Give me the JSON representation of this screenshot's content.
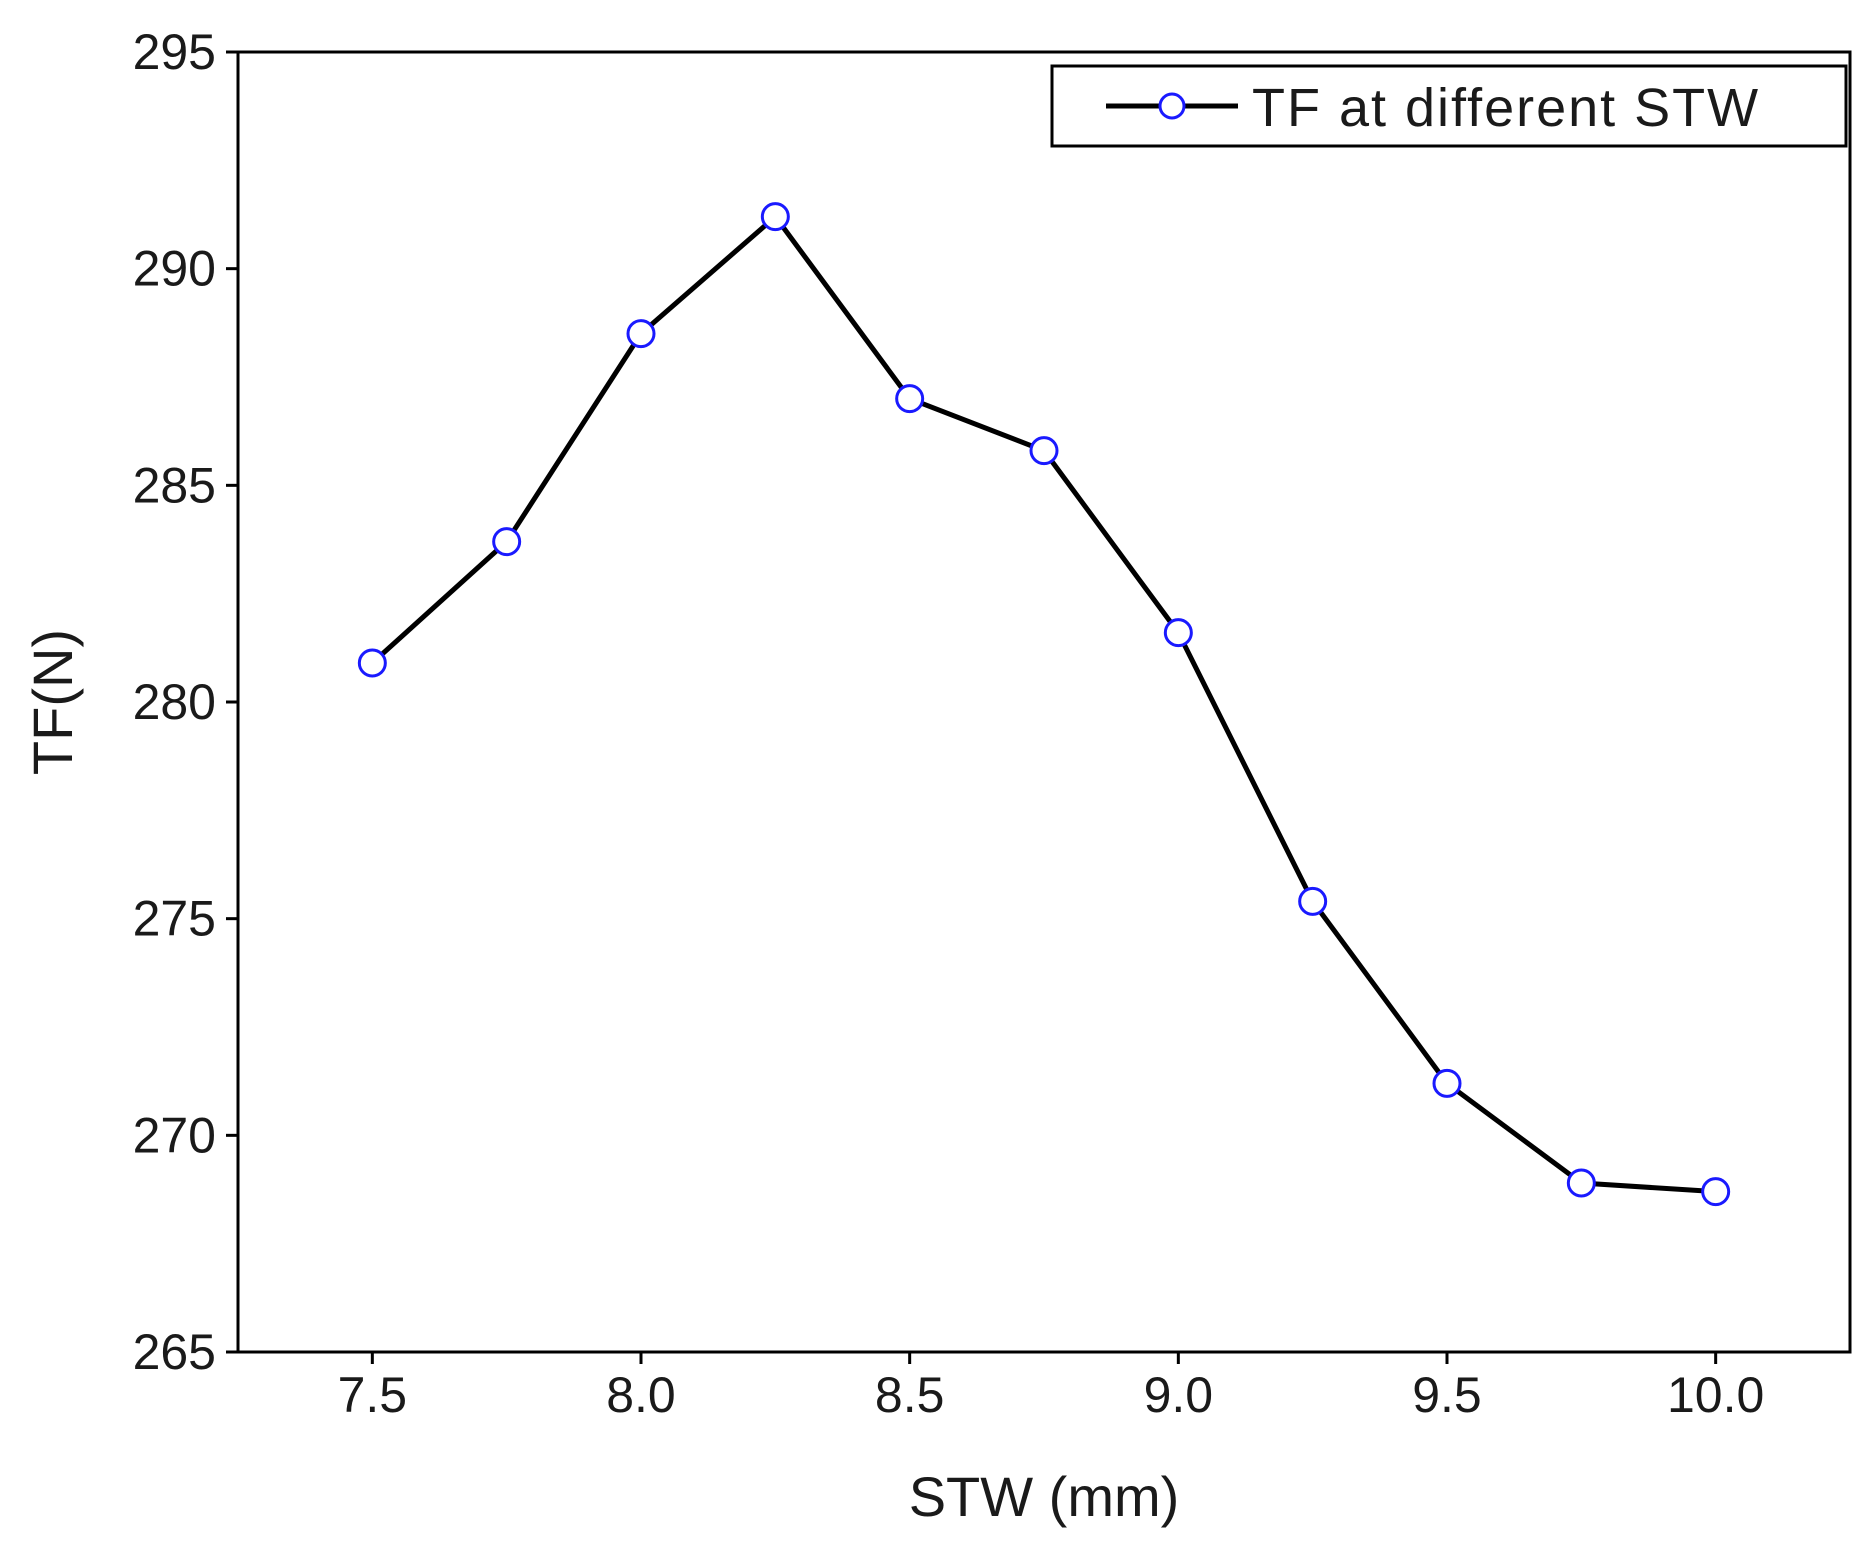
{
  "chart_data": {
    "type": "line",
    "title": "",
    "xlabel": "STW (mm)",
    "ylabel": "TF(N)",
    "xlim": [
      7.25,
      10.25
    ],
    "ylim": [
      265,
      295
    ],
    "x_ticks": [
      7.5,
      8.0,
      8.5,
      9.0,
      9.5,
      10.0
    ],
    "x_tick_labels": [
      "7.5",
      "8.0",
      "8.5",
      "9.0",
      "9.5",
      "10.0"
    ],
    "y_ticks": [
      265,
      270,
      275,
      280,
      285,
      290,
      295
    ],
    "y_tick_labels": [
      "265",
      "270",
      "275",
      "280",
      "285",
      "290",
      "295"
    ],
    "grid": false,
    "legend_position": "top-right",
    "series": [
      {
        "name": "TF at different STW",
        "x": [
          7.5,
          7.75,
          8.0,
          8.25,
          8.5,
          8.75,
          9.0,
          9.25,
          9.5,
          9.75,
          10.0
        ],
        "values": [
          280.9,
          283.7,
          288.5,
          291.2,
          287.0,
          285.8,
          281.6,
          275.4,
          271.2,
          268.9,
          268.7
        ],
        "line_color": "#000000",
        "marker_color": "#1a1aff",
        "marker": "open-circle"
      }
    ]
  }
}
